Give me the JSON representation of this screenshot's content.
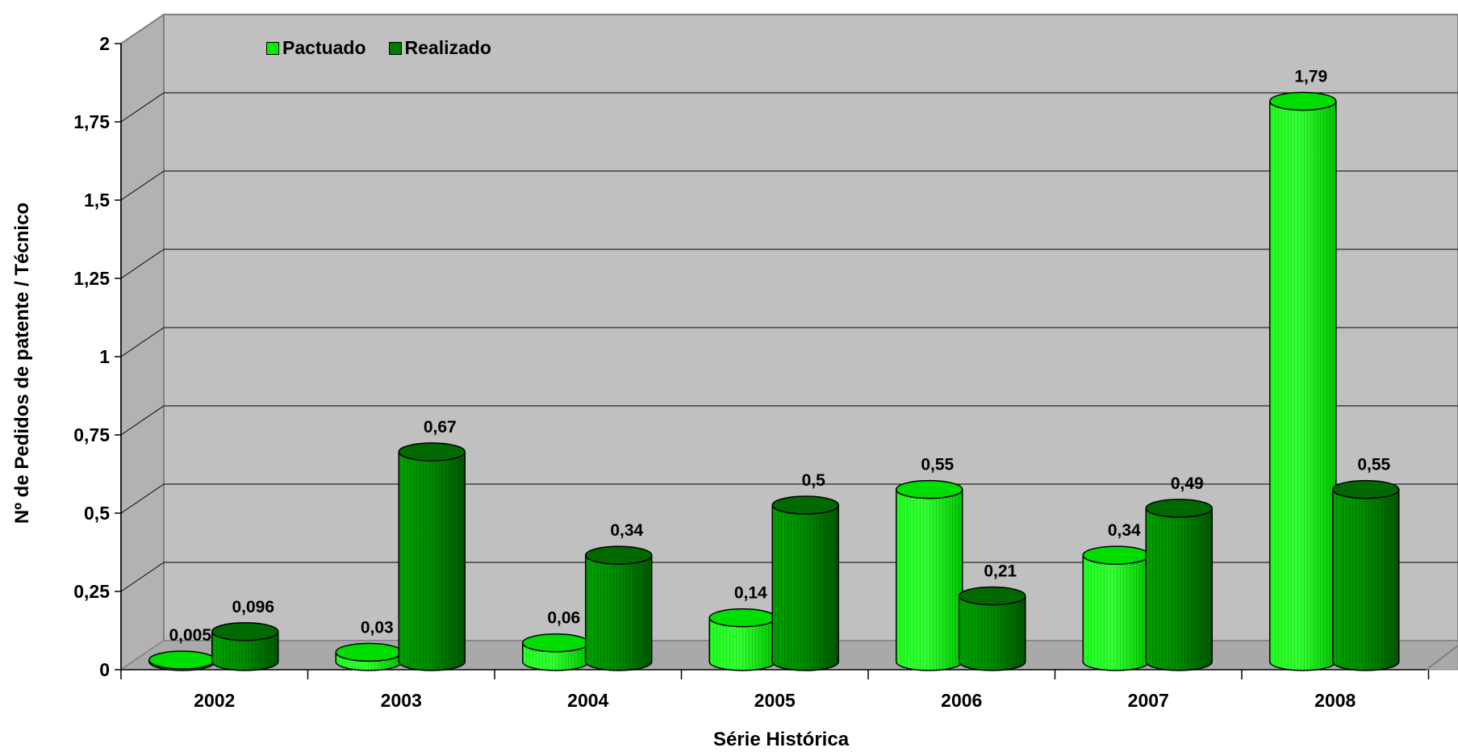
{
  "chart_data": {
    "type": "bar",
    "style": "3d-cylinder",
    "title": "",
    "xlabel": "Série Histórica",
    "ylabel": "Nº de Pedidos de patente / Técnico",
    "categories": [
      "2002",
      "2003",
      "2004",
      "2005",
      "2006",
      "2007",
      "2008"
    ],
    "ylim": [
      0,
      2
    ],
    "yticks": [
      "0",
      "0,25",
      "0,5",
      "0,75",
      "1",
      "1,25",
      "1,5",
      "1,75",
      "2"
    ],
    "grid": true,
    "legend": "top-left",
    "series": [
      {
        "name": "Pactuado",
        "color": "#00ee00",
        "values": [
          0.005,
          0.03,
          0.06,
          0.14,
          0.55,
          0.34,
          1.79
        ],
        "labels": [
          "0,005",
          "0,03",
          "0,06",
          "0,14",
          "0,55",
          "0,34",
          "1,79"
        ]
      },
      {
        "name": "Realizado",
        "color": "#007a00",
        "values": [
          0.096,
          0.67,
          0.34,
          0.5,
          0.21,
          0.49,
          0.55
        ],
        "labels": [
          "0,096",
          "0,67",
          "0,34",
          "0,5",
          "0,21",
          "0,49",
          "0,55"
        ]
      }
    ],
    "wall_color": "#c0c0c0"
  }
}
